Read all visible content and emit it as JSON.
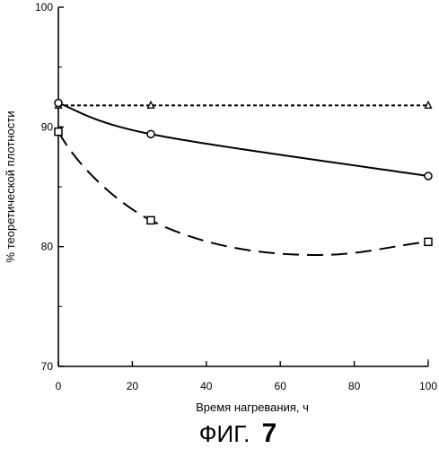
{
  "chart_data": {
    "type": "line",
    "xlabel": "Время нагревания, ч",
    "ylabel": "% теоретической плотности",
    "xlim": [
      0,
      100
    ],
    "ylim": [
      70,
      100
    ],
    "xticks": [
      "0",
      "20",
      "40",
      "60",
      "80",
      "100"
    ],
    "yticks": [
      "70",
      "80",
      "90",
      "100"
    ],
    "caption_text": "ФИГ.",
    "caption_number": "7",
    "series": [
      {
        "marker": "triangle",
        "line": "short-dash",
        "points": [
          [
            0,
            91.8
          ],
          [
            25,
            91.8
          ],
          [
            100,
            91.8
          ]
        ]
      },
      {
        "marker": "circle",
        "line": "solid",
        "points": [
          [
            0,
            92.0
          ],
          [
            25,
            89.4
          ],
          [
            100,
            85.9
          ]
        ]
      },
      {
        "marker": "square",
        "line": "long-dash",
        "points": [
          [
            0,
            89.6
          ],
          [
            25,
            82.2
          ],
          [
            100,
            80.4
          ]
        ]
      }
    ]
  }
}
